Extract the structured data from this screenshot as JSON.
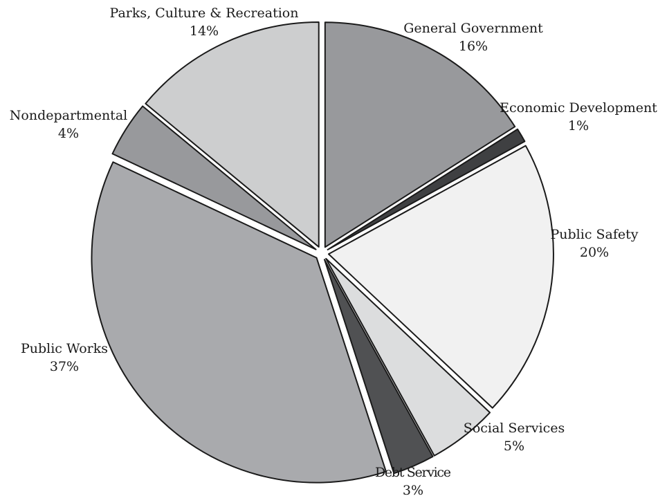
{
  "chart_data": {
    "type": "pie",
    "title": "",
    "slices": [
      {
        "label": "General Government",
        "percent_label": "16%",
        "value": 16,
        "color": "#98999c"
      },
      {
        "label": "Economic Development",
        "percent_label": "1%",
        "value": 1,
        "color": "#3f4042"
      },
      {
        "label": "Public Safety",
        "percent_label": "20%",
        "value": 20,
        "color": "#f1f1f1"
      },
      {
        "label": "Social Services",
        "percent_label": "5%",
        "value": 5,
        "color": "#dcddde"
      },
      {
        "label": "Debt Service",
        "percent_label": "3%",
        "value": 3,
        "color": "#505153"
      },
      {
        "label": "Public Works",
        "percent_label": "37%",
        "value": 37,
        "color": "#a9aaad"
      },
      {
        "label": "Nondepartmental",
        "percent_label": "4%",
        "value": 4,
        "color": "#98999c"
      },
      {
        "label": "Parks, Culture & Recreation",
        "percent_label": "14%",
        "value": 14,
        "color": "#cdcecf"
      }
    ]
  }
}
